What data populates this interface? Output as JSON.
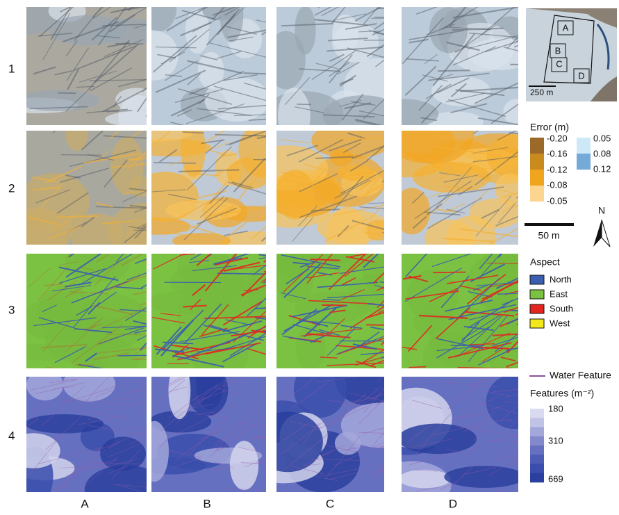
{
  "rows": [
    "1",
    "2",
    "3",
    "4"
  ],
  "columns": [
    "A",
    "B",
    "C",
    "D"
  ],
  "inset": {
    "boxes": [
      "A",
      "B",
      "C",
      "D"
    ],
    "scale": "250 m"
  },
  "error_legend": {
    "title": "Error (m)",
    "negative": [
      "-0.20",
      "-0.16",
      "-0.12",
      "-0.08",
      "-0.05"
    ],
    "positive": [
      "0.05",
      "0.08",
      "0.12"
    ]
  },
  "scale_bar": "50 m",
  "north": "N",
  "aspect_legend": {
    "title": "Aspect",
    "entries": [
      "North",
      "East",
      "South",
      "West"
    ]
  },
  "water_feature": "Water Feature",
  "features_legend": {
    "title": "Features (m⁻²)",
    "labels": [
      "180",
      "310",
      "669"
    ]
  }
}
